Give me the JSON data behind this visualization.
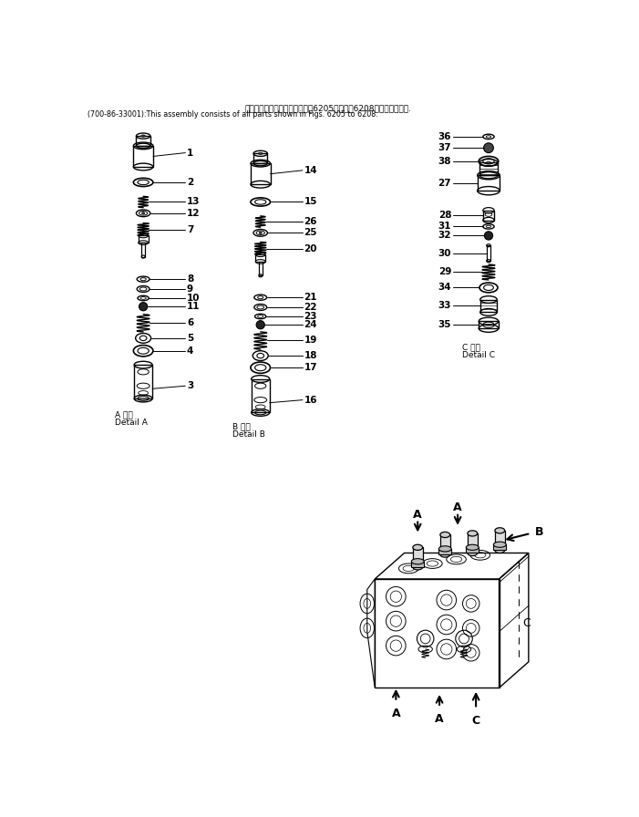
{
  "title_line1": "このアセンブリの構成部品は第6205図から第6208図まで含みます.",
  "title_line2": "(700-86-33001):This assembly consists of all parts shown in Figs. 6205 to 6208.",
  "bg_color": "#ffffff",
  "line_color": "#000000",
  "detail_a_label1": "A 詳細",
  "detail_a_label2": "Detail A",
  "detail_b_label1": "B 詳細",
  "detail_b_label2": "Detail B",
  "detail_c_label1": "C 詳細",
  "detail_c_label2": "Detail C"
}
